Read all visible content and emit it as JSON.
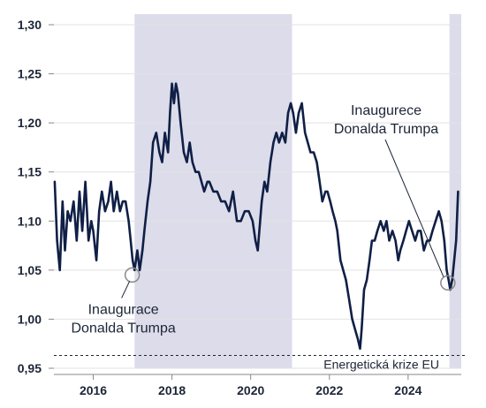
{
  "colors": {
    "line": "#0f1f45",
    "shade": "#dcdcea",
    "grid": "#e2e2e2",
    "axis": "#888888",
    "text": "#1c2536",
    "marker": "#888888"
  },
  "chart_data": {
    "type": "line",
    "title": "",
    "xlabel": "",
    "ylabel": "",
    "xlim": [
      2015.0,
      2025.35
    ],
    "ylim": [
      0.95,
      1.3
    ],
    "x_ticks": [
      {
        "value": 2016,
        "label": "2016"
      },
      {
        "value": 2018,
        "label": "2018"
      },
      {
        "value": 2020,
        "label": "2020"
      },
      {
        "value": 2022,
        "label": "2022"
      },
      {
        "value": 2024,
        "label": "2024"
      }
    ],
    "y_ticks": [
      {
        "value": 0.95,
        "label": "0,95"
      },
      {
        "value": 1.0,
        "label": "1,00"
      },
      {
        "value": 1.05,
        "label": "1,05"
      },
      {
        "value": 1.1,
        "label": "1,10"
      },
      {
        "value": 1.15,
        "label": "1,15"
      },
      {
        "value": 1.2,
        "label": "1,20"
      },
      {
        "value": 1.25,
        "label": "1,25"
      },
      {
        "value": 1.3,
        "label": "1,30"
      }
    ],
    "grid": "horizontal",
    "shaded_periods": [
      {
        "start": 2017.05,
        "end": 2021.05
      },
      {
        "start": 2025.05,
        "end": 2025.35
      }
    ],
    "reference_line": {
      "y": 0.963,
      "style": "dashed",
      "label": "Energetická krize EU"
    },
    "series": [
      {
        "x": [
          2015.02,
          2015.08,
          2015.15,
          2015.22,
          2015.28,
          2015.35,
          2015.42,
          2015.5,
          2015.58,
          2015.65,
          2015.72,
          2015.8,
          2015.88,
          2015.95,
          2016.0,
          2016.08,
          2016.15,
          2016.22,
          2016.3,
          2016.38,
          2016.45,
          2016.52,
          2016.6,
          2016.68,
          2016.75,
          2016.82,
          2016.9,
          2016.95,
          2017.0,
          2017.05,
          2017.12,
          2017.18,
          2017.25,
          2017.3,
          2017.38,
          2017.45,
          2017.52,
          2017.6,
          2017.68,
          2017.75,
          2017.82,
          2017.9,
          2017.95,
          2018.0,
          2018.05,
          2018.1,
          2018.15,
          2018.22,
          2018.3,
          2018.38,
          2018.45,
          2018.52,
          2018.6,
          2018.68,
          2018.75,
          2018.82,
          2018.9,
          2018.95,
          2019.05,
          2019.15,
          2019.25,
          2019.35,
          2019.45,
          2019.55,
          2019.65,
          2019.75,
          2019.85,
          2019.95,
          2020.05,
          2020.12,
          2020.18,
          2020.22,
          2020.28,
          2020.35,
          2020.42,
          2020.5,
          2020.58,
          2020.65,
          2020.72,
          2020.8,
          2020.88,
          2020.95,
          2021.02,
          2021.08,
          2021.15,
          2021.22,
          2021.3,
          2021.38,
          2021.45,
          2021.52,
          2021.6,
          2021.68,
          2021.75,
          2021.82,
          2021.9,
          2021.95,
          2022.02,
          2022.08,
          2022.15,
          2022.2,
          2022.28,
          2022.35,
          2022.42,
          2022.5,
          2022.58,
          2022.65,
          2022.72,
          2022.78,
          2022.82,
          2022.88,
          2022.95,
          2023.02,
          2023.08,
          2023.15,
          2023.22,
          2023.3,
          2023.38,
          2023.45,
          2023.52,
          2023.6,
          2023.68,
          2023.75,
          2023.8,
          2023.88,
          2023.95,
          2024.02,
          2024.1,
          2024.18,
          2024.25,
          2024.32,
          2024.4,
          2024.48,
          2024.55,
          2024.62,
          2024.7,
          2024.78,
          2024.85,
          2024.92,
          2024.98,
          2025.03,
          2025.07,
          2025.12,
          2025.17,
          2025.22,
          2025.27
        ],
        "y": [
          1.14,
          1.08,
          1.05,
          1.12,
          1.07,
          1.11,
          1.1,
          1.12,
          1.08,
          1.13,
          1.09,
          1.14,
          1.08,
          1.1,
          1.09,
          1.06,
          1.11,
          1.13,
          1.11,
          1.12,
          1.14,
          1.11,
          1.13,
          1.11,
          1.12,
          1.12,
          1.1,
          1.08,
          1.06,
          1.05,
          1.07,
          1.05,
          1.07,
          1.09,
          1.12,
          1.14,
          1.18,
          1.19,
          1.17,
          1.16,
          1.19,
          1.17,
          1.21,
          1.24,
          1.22,
          1.24,
          1.23,
          1.2,
          1.17,
          1.16,
          1.18,
          1.16,
          1.15,
          1.15,
          1.14,
          1.13,
          1.14,
          1.14,
          1.13,
          1.13,
          1.12,
          1.12,
          1.11,
          1.13,
          1.1,
          1.1,
          1.11,
          1.11,
          1.1,
          1.08,
          1.07,
          1.09,
          1.12,
          1.14,
          1.13,
          1.16,
          1.18,
          1.19,
          1.18,
          1.19,
          1.18,
          1.21,
          1.22,
          1.21,
          1.19,
          1.21,
          1.22,
          1.19,
          1.18,
          1.17,
          1.17,
          1.16,
          1.14,
          1.12,
          1.13,
          1.13,
          1.12,
          1.11,
          1.1,
          1.09,
          1.06,
          1.05,
          1.04,
          1.02,
          1.0,
          0.99,
          0.98,
          0.97,
          0.99,
          1.03,
          1.04,
          1.06,
          1.08,
          1.08,
          1.09,
          1.1,
          1.09,
          1.1,
          1.08,
          1.09,
          1.08,
          1.06,
          1.07,
          1.08,
          1.09,
          1.1,
          1.09,
          1.08,
          1.09,
          1.09,
          1.07,
          1.08,
          1.08,
          1.09,
          1.1,
          1.11,
          1.1,
          1.08,
          1.05,
          1.04,
          1.03,
          1.04,
          1.06,
          1.08,
          1.13
        ]
      }
    ],
    "markers": [
      {
        "x": 2016.99,
        "y": 1.045,
        "label": [
          "Inaugurace",
          "Donalda Trumpa"
        ],
        "label_side": "below"
      },
      {
        "x": 2025.01,
        "y": 1.037,
        "label": [
          "Inaugurece",
          "Donalda Trumpa"
        ],
        "label_side": "above"
      }
    ]
  }
}
